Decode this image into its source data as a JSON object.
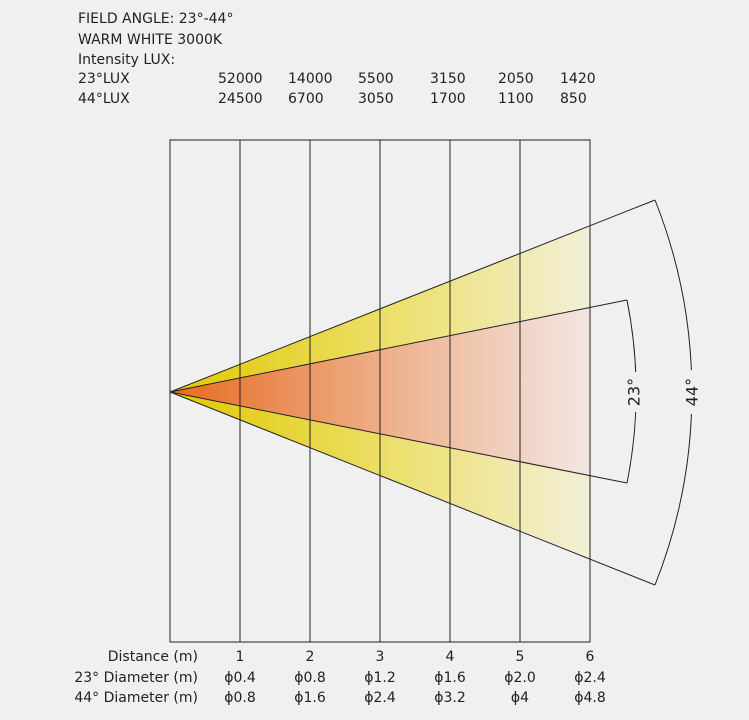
{
  "header": {
    "title": "FIELD ANGLE: 23°-44°",
    "subtitle": "WARM WHITE 3000K",
    "intensity_label": "Intensity LUX:"
  },
  "lux_table": {
    "rows": [
      {
        "label": "23°LUX",
        "values": [
          "52000",
          "14000",
          "5500",
          "3150",
          "2050",
          "1420"
        ]
      },
      {
        "label": "44°LUX",
        "values": [
          "24500",
          "6700",
          "3050",
          "1700",
          "1100",
          "850"
        ]
      }
    ]
  },
  "diagram": {
    "angle_labels": [
      "23°",
      "44°"
    ]
  },
  "distance_table": {
    "rows": [
      {
        "label": "Distance (m)",
        "values": [
          "1",
          "2",
          "3",
          "4",
          "5",
          "6"
        ]
      },
      {
        "label": "23° Diameter (m)",
        "values": [
          "ϕ0.4",
          "ϕ0.8",
          "ϕ1.2",
          "ϕ1.6",
          "ϕ2.0",
          "ϕ2.4"
        ]
      },
      {
        "label": "44° Diameter (m)",
        "values": [
          "ϕ0.8",
          "ϕ1.6",
          "ϕ2.4",
          "ϕ3.2",
          "ϕ4",
          "ϕ4.8"
        ]
      }
    ]
  }
}
